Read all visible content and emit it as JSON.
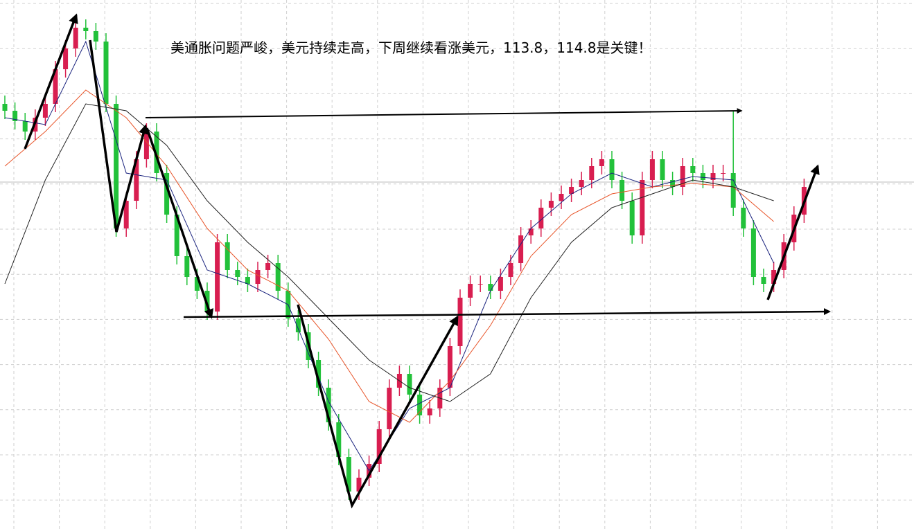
{
  "chart_data": {
    "type": "candlestick",
    "annotation": "美通胀问题严峻，美元持续走高，下周继续看涨美元，113.8，114.8是关键！",
    "up_color": "#d81e50",
    "down_color": "#22c13a",
    "ylim": [
      0,
      767
    ],
    "grid": true,
    "open": [
      617,
      607,
      592,
      577,
      597,
      617,
      667,
      697,
      727,
      722,
      707,
      617,
      437,
      477,
      537,
      577,
      517,
      457,
      397,
      367,
      347,
      317,
      417,
      377,
      367,
      357,
      377,
      387,
      347,
      307,
      287,
      247,
      207,
      157,
      107,
      57,
      77,
      97,
      147,
      207,
      227,
      197,
      167,
      177,
      207,
      267,
      337,
      357,
      357,
      347,
      367,
      387,
      427,
      437,
      467,
      477,
      487,
      497,
      507,
      527,
      537,
      507,
      477,
      427,
      507,
      537,
      507,
      497,
      527,
      517,
      507,
      517,
      517,
      467,
      437,
      367,
      357,
      377,
      417,
      457
    ],
    "high": [
      629,
      619,
      604,
      609,
      629,
      679,
      709,
      739,
      739,
      734,
      719,
      629,
      489,
      549,
      589,
      589,
      529,
      469,
      409,
      379,
      359,
      429,
      429,
      389,
      379,
      389,
      399,
      399,
      359,
      319,
      299,
      259,
      219,
      169,
      119,
      89,
      109,
      159,
      219,
      239,
      239,
      209,
      189,
      219,
      279,
      349,
      369,
      369,
      369,
      379,
      399,
      439,
      449,
      479,
      489,
      499,
      509,
      519,
      539,
      549,
      549,
      519,
      489,
      519,
      549,
      549,
      519,
      539,
      539,
      529,
      529,
      529,
      607,
      479,
      449,
      379,
      389,
      429,
      469,
      509
    ],
    "low": [
      595,
      580,
      565,
      565,
      585,
      605,
      655,
      685,
      710,
      695,
      605,
      425,
      425,
      465,
      525,
      505,
      445,
      385,
      355,
      335,
      305,
      305,
      365,
      355,
      345,
      345,
      365,
      335,
      295,
      275,
      235,
      195,
      145,
      95,
      45,
      45,
      65,
      85,
      135,
      195,
      185,
      155,
      155,
      165,
      195,
      255,
      325,
      345,
      335,
      335,
      355,
      375,
      415,
      425,
      455,
      465,
      475,
      485,
      495,
      515,
      495,
      465,
      415,
      415,
      495,
      495,
      485,
      485,
      505,
      495,
      495,
      505,
      455,
      425,
      355,
      345,
      345,
      365,
      405,
      445
    ],
    "close": [
      607,
      592,
      577,
      597,
      617,
      667,
      697,
      727,
      722,
      707,
      617,
      437,
      477,
      537,
      577,
      517,
      457,
      397,
      367,
      347,
      317,
      417,
      377,
      367,
      357,
      377,
      387,
      347,
      307,
      287,
      247,
      207,
      157,
      107,
      57,
      77,
      97,
      147,
      207,
      227,
      197,
      167,
      177,
      207,
      267,
      337,
      357,
      357,
      347,
      367,
      387,
      427,
      437,
      467,
      477,
      487,
      497,
      507,
      527,
      537,
      507,
      477,
      427,
      507,
      537,
      507,
      497,
      527,
      517,
      507,
      517,
      517,
      467,
      437,
      367,
      357,
      377,
      417,
      457,
      497
    ],
    "series": [
      {
        "color": "#1a237e",
        "x": [
          0,
          4,
          8,
          12,
          16,
          20,
          24,
          28,
          32,
          36,
          40,
          44,
          48,
          52,
          56,
          60,
          64,
          68,
          72,
          76
        ],
        "values": [
          597,
          587,
          707,
          517,
          507,
          377,
          357,
          327,
          187,
          87,
          177,
          207,
          347,
          437,
          487,
          517,
          497,
          512,
          507,
          387
        ]
      },
      {
        "color": "#e8552a",
        "x": [
          0,
          4,
          8,
          12,
          16,
          20,
          24,
          28,
          32,
          36,
          40,
          44,
          48,
          52,
          56,
          60,
          64,
          68,
          72,
          76
        ],
        "values": [
          527,
          577,
          637,
          597,
          527,
          437,
          377,
          347,
          277,
          187,
          157,
          217,
          297,
          397,
          457,
          487,
          497,
          502,
          497,
          447
        ]
      },
      {
        "color": "#222222",
        "x": [
          0,
          4,
          8,
          12,
          16,
          20,
          24,
          28,
          32,
          36,
          40,
          44,
          48,
          52,
          56,
          60,
          64,
          68,
          72,
          76
        ],
        "values": [
          357,
          507,
          617,
          607,
          557,
          477,
          417,
          367,
          307,
          247,
          207,
          187,
          227,
          337,
          417,
          467,
          487,
          507,
          497,
          477
        ]
      }
    ]
  }
}
